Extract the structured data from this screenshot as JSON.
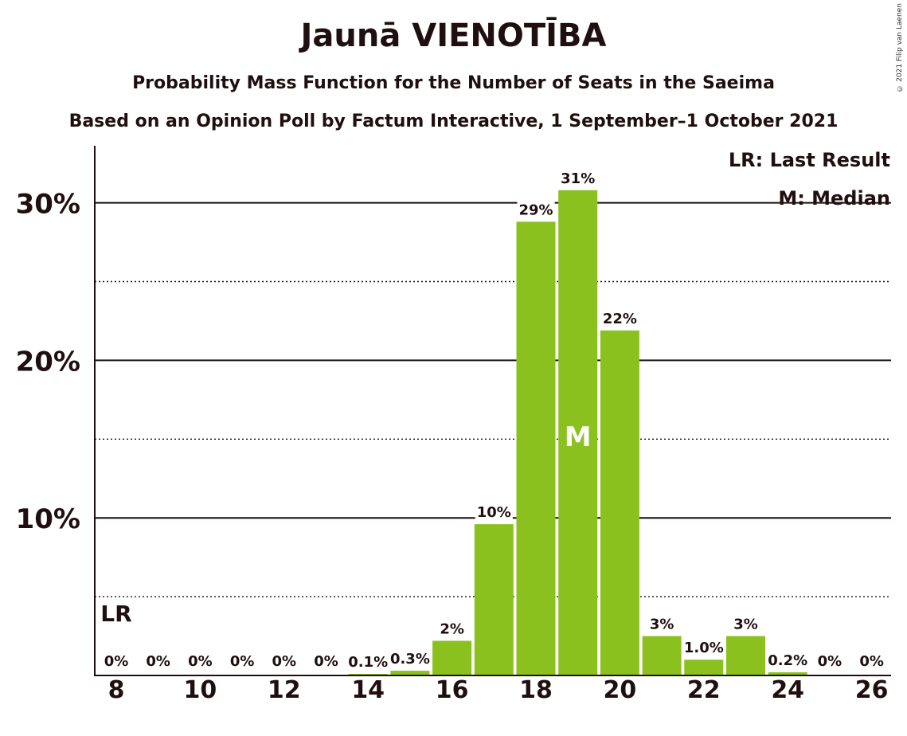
{
  "title": "Jaunā VIENOTĪBA",
  "subtitle": "Probability Mass Function for the Number of Seats in the Saeima",
  "source": "Based on an Opinion Poll by Factum Interactive, 1 September–1 October 2021",
  "copyright": "© 2021 Filip van Laenen",
  "colors": {
    "bar": "#8bc11f",
    "text": "#1f0f10",
    "background": "#ffffff"
  },
  "legend": {
    "lr": "LR: Last Result",
    "median": "M: Median"
  },
  "chart_data": {
    "type": "bar",
    "title": "Jaunā VIENOTĪBA",
    "xlabel": "",
    "ylabel": "",
    "ylim": [
      0,
      33
    ],
    "grid": {
      "major": [
        10,
        20,
        30
      ],
      "minor": [
        5,
        15,
        25
      ]
    },
    "y_ticks": [
      "10%",
      "20%",
      "30%"
    ],
    "x_ticks": [
      "8",
      "10",
      "12",
      "14",
      "16",
      "18",
      "20",
      "22",
      "24",
      "26"
    ],
    "categories": [
      8,
      9,
      10,
      11,
      12,
      13,
      14,
      15,
      16,
      17,
      18,
      19,
      20,
      21,
      22,
      23,
      24,
      25,
      26
    ],
    "values": [
      0,
      0,
      0,
      0,
      0,
      0,
      0.1,
      0.3,
      2.2,
      9.6,
      28.8,
      30.8,
      21.9,
      2.5,
      1.0,
      2.5,
      0.2,
      0,
      0
    ],
    "labels": [
      "0%",
      "0%",
      "0%",
      "0%",
      "0%",
      "0%",
      "0.1%",
      "0.3%",
      "2%",
      "10%",
      "29%",
      "31%",
      "22%",
      "3%",
      "1.0%",
      "3%",
      "0.2%",
      "0%",
      "0%"
    ],
    "last_result": 8,
    "last_result_label": "LR",
    "median": 19,
    "median_label": "M",
    "legend_position": "top-right"
  }
}
